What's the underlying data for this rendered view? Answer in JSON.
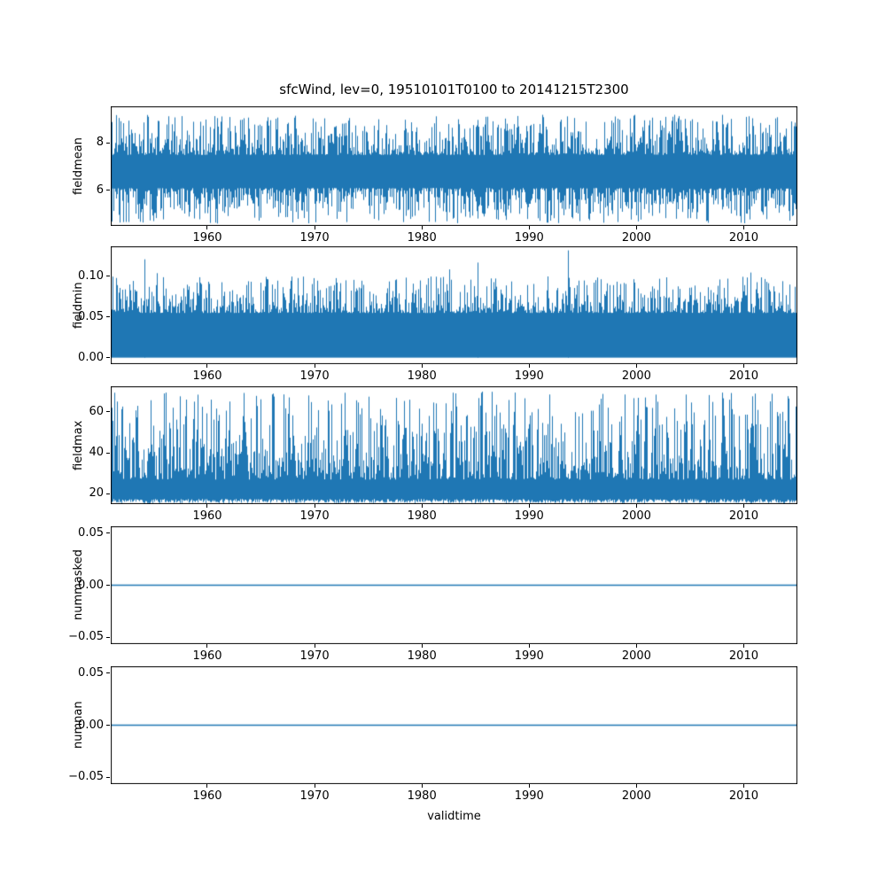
{
  "figure": {
    "title": "sfcWind, lev=0, 19510101T0100 to 20141215T2300",
    "xlabel": "validtime",
    "background": "#ffffff",
    "line_color": "#1f77b4",
    "xlim": [
      1951,
      2015
    ],
    "xticks": [
      {
        "v": 1960,
        "label": "1960"
      },
      {
        "v": 1970,
        "label": "1970"
      },
      {
        "v": 1980,
        "label": "1980"
      },
      {
        "v": 1990,
        "label": "1990"
      },
      {
        "v": 2000,
        "label": "2000"
      },
      {
        "v": 2010,
        "label": "2010"
      }
    ]
  },
  "chart_data": [
    {
      "type": "line",
      "name": "fieldmean",
      "ylabel": "fieldmean",
      "color": "#1f77b4",
      "ylim": [
        4.5,
        9.55
      ],
      "yticks": [
        {
          "v": 6,
          "label": "6"
        },
        {
          "v": 8,
          "label": "8"
        }
      ],
      "summary": {
        "min": 4.7,
        "max": 9.3,
        "mean": 6.8,
        "description": "dense noisy sub-daily wind speed mean, stationary band roughly 5-8.5 with spikes to 9.3"
      },
      "render": {
        "kind": "noise",
        "hiBase": 7.5,
        "hiAmp": 1.7,
        "hiPow": 2.0,
        "loBase": 6.1,
        "loAmp": 1.5,
        "loPow": 2.0
      }
    },
    {
      "type": "line",
      "name": "fieldmin",
      "ylabel": "fieldmin",
      "color": "#1f77b4",
      "ylim": [
        -0.008,
        0.137
      ],
      "yticks": [
        {
          "v": 0,
          "label": "0.00"
        },
        {
          "v": 0.05,
          "label": "0.05"
        },
        {
          "v": 0.1,
          "label": "0.10"
        }
      ],
      "summary": {
        "min": 0.0,
        "max": 0.132,
        "description": "solid band from 0 up to about 0.07 with frequent spikes near 0.10, tallest spike about 0.13 around 1993"
      },
      "render": {
        "kind": "noise",
        "hiBase": 0.055,
        "hiAmp": 0.045,
        "hiPow": 2.5,
        "loBase": 0.0,
        "loAmp": 0.0,
        "loPow": 1,
        "spikeProb": 0.02,
        "spikeAmp": 0.03,
        "cap": 0.127,
        "specials": [
          {
            "year": 1993.6,
            "v": 0.132
          },
          {
            "year": 1954.1,
            "v": 0.121
          },
          {
            "year": 1985.2,
            "v": 0.117
          }
        ]
      }
    },
    {
      "type": "line",
      "name": "fieldmax",
      "ylabel": "fieldmax",
      "color": "#1f77b4",
      "ylim": [
        15,
        72.5
      ],
      "yticks": [
        {
          "v": 20,
          "label": "20"
        },
        {
          "v": 40,
          "label": "40"
        },
        {
          "v": 60,
          "label": "60"
        }
      ],
      "summary": {
        "min": 15.5,
        "max": 70,
        "description": "dense base band 15-25 with recurring spikes to 50-70 across the whole record"
      },
      "render": {
        "kind": "noise",
        "hiBase": 27,
        "hiAmp": 43,
        "hiPow": 1.9,
        "loBase": 17.5,
        "loAmp": 2.0,
        "loPow": 1,
        "cap": 70.3
      }
    },
    {
      "type": "line",
      "name": "nummasked",
      "ylabel": "nummasked",
      "color": "#1f77b4",
      "ylim": [
        -0.0565,
        0.0565
      ],
      "yticks": [
        {
          "v": -0.05,
          "label": "−0.05"
        },
        {
          "v": 0,
          "label": "0.00"
        },
        {
          "v": 0.05,
          "label": "0.05"
        }
      ],
      "summary": {
        "constant": 0,
        "description": "constant zero line for entire period"
      },
      "render": {
        "kind": "flat",
        "value": 0
      }
    },
    {
      "type": "line",
      "name": "numnan",
      "ylabel": "numnan",
      "color": "#1f77b4",
      "ylim": [
        -0.0565,
        0.0565
      ],
      "yticks": [
        {
          "v": -0.05,
          "label": "−0.05"
        },
        {
          "v": 0,
          "label": "0.00"
        },
        {
          "v": 0.05,
          "label": "0.05"
        }
      ],
      "summary": {
        "constant": 0,
        "description": "constant zero line for entire period"
      },
      "render": {
        "kind": "flat",
        "value": 0
      }
    }
  ]
}
